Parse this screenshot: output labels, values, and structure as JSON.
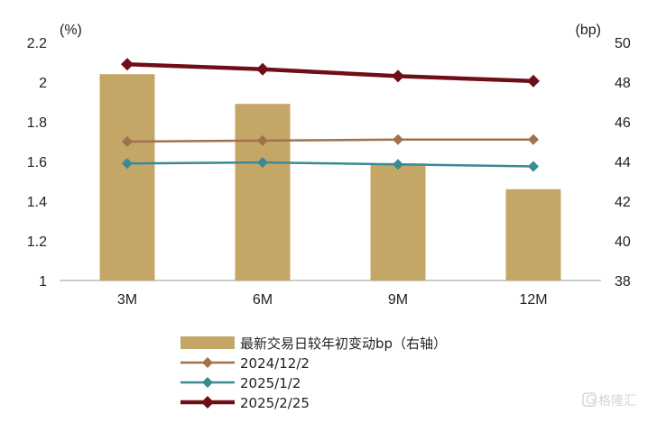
{
  "chart_data": {
    "type": "bar+line",
    "left_unit": "(%)",
    "right_unit": "(bp)",
    "categories": [
      "3M",
      "6M",
      "9M",
      "12M"
    ],
    "left_axis": {
      "min": 1,
      "max": 2.2,
      "ticks": [
        1,
        1.2,
        1.4,
        1.6,
        1.8,
        2,
        2.2
      ]
    },
    "right_axis": {
      "min": 38,
      "max": 50,
      "ticks": [
        38,
        40,
        42,
        44,
        46,
        48,
        50
      ]
    },
    "bars": {
      "name": "最新交易日较年初变动bp（右轴）",
      "axis": "right",
      "values": [
        48.4,
        46.9,
        43.9,
        42.6
      ],
      "color": "#C4A767"
    },
    "lines": [
      {
        "name": "2024/12/2",
        "axis": "left",
        "values": [
          1.7,
          1.705,
          1.71,
          1.71
        ],
        "color": "#A0714C",
        "width": 2.5
      },
      {
        "name": "2025/1/2",
        "axis": "left",
        "values": [
          1.59,
          1.595,
          1.585,
          1.575
        ],
        "color": "#3A8A93",
        "width": 2.5
      },
      {
        "name": "2025/2/25",
        "axis": "left",
        "values": [
          2.09,
          2.065,
          2.03,
          2.005
        ],
        "color": "#6E0E16",
        "width": 4.5
      }
    ],
    "legend_position": "bottom",
    "grid": false
  },
  "watermark": {
    "text": "格隆汇"
  }
}
